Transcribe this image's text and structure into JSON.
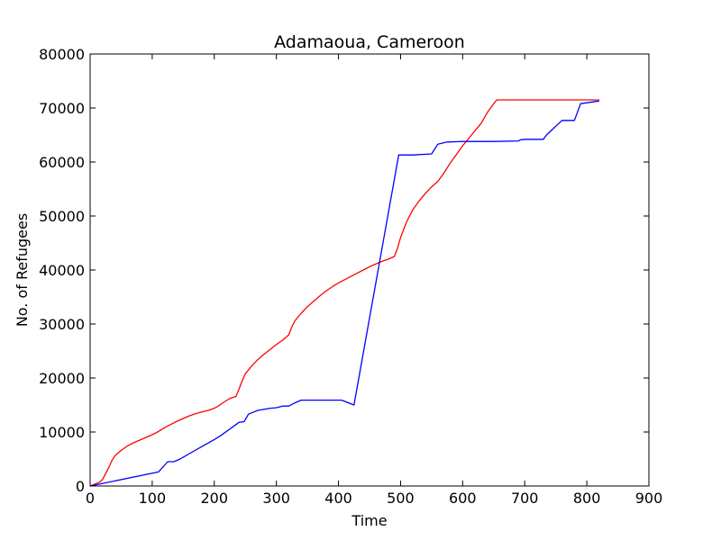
{
  "chart_data": {
    "type": "line",
    "title": "Adamaoua, Cameroon",
    "xlabel": "Time",
    "ylabel": "No. of Refugees",
    "xlim": [
      0,
      900
    ],
    "ylim": [
      0,
      80000
    ],
    "x_ticks": [
      0,
      100,
      200,
      300,
      400,
      500,
      600,
      700,
      800,
      900
    ],
    "y_ticks": [
      0,
      10000,
      20000,
      30000,
      40000,
      50000,
      60000,
      70000,
      80000
    ],
    "grid": false,
    "legend": "none",
    "series": [
      {
        "color": "#ff0000",
        "points": [
          [
            0,
            0
          ],
          [
            15,
            700
          ],
          [
            20,
            1200
          ],
          [
            25,
            2300
          ],
          [
            30,
            3400
          ],
          [
            35,
            4700
          ],
          [
            40,
            5600
          ],
          [
            50,
            6600
          ],
          [
            60,
            7400
          ],
          [
            70,
            8000
          ],
          [
            80,
            8500
          ],
          [
            90,
            9000
          ],
          [
            100,
            9500
          ],
          [
            110,
            10100
          ],
          [
            120,
            10800
          ],
          [
            130,
            11400
          ],
          [
            140,
            12000
          ],
          [
            150,
            12500
          ],
          [
            160,
            13000
          ],
          [
            170,
            13400
          ],
          [
            180,
            13700
          ],
          [
            190,
            14000
          ],
          [
            200,
            14400
          ],
          [
            205,
            14700
          ],
          [
            215,
            15500
          ],
          [
            225,
            16200
          ],
          [
            235,
            16600
          ],
          [
            240,
            18000
          ],
          [
            245,
            19500
          ],
          [
            250,
            20800
          ],
          [
            260,
            22200
          ],
          [
            270,
            23400
          ],
          [
            280,
            24400
          ],
          [
            290,
            25300
          ],
          [
            300,
            26200
          ],
          [
            310,
            27000
          ],
          [
            320,
            28000
          ],
          [
            325,
            29500
          ],
          [
            330,
            30600
          ],
          [
            340,
            32000
          ],
          [
            350,
            33200
          ],
          [
            360,
            34200
          ],
          [
            370,
            35200
          ],
          [
            380,
            36100
          ],
          [
            390,
            36900
          ],
          [
            400,
            37600
          ],
          [
            410,
            38200
          ],
          [
            420,
            38800
          ],
          [
            430,
            39400
          ],
          [
            440,
            40000
          ],
          [
            450,
            40600
          ],
          [
            460,
            41100
          ],
          [
            470,
            41600
          ],
          [
            480,
            42000
          ],
          [
            490,
            42500
          ],
          [
            495,
            44000
          ],
          [
            500,
            46000
          ],
          [
            510,
            49000
          ],
          [
            520,
            51200
          ],
          [
            530,
            52800
          ],
          [
            540,
            54200
          ],
          [
            550,
            55400
          ],
          [
            560,
            56400
          ],
          [
            570,
            58000
          ],
          [
            580,
            59800
          ],
          [
            590,
            61400
          ],
          [
            600,
            63000
          ],
          [
            610,
            64400
          ],
          [
            620,
            65800
          ],
          [
            630,
            67200
          ],
          [
            640,
            69200
          ],
          [
            650,
            70800
          ],
          [
            655,
            71500
          ],
          [
            700,
            71500
          ],
          [
            750,
            71500
          ],
          [
            800,
            71500
          ],
          [
            820,
            71500
          ]
        ]
      },
      {
        "color": "#0000ff",
        "points": [
          [
            0,
            0
          ],
          [
            110,
            2600
          ],
          [
            125,
            4500
          ],
          [
            135,
            4500
          ],
          [
            145,
            5000
          ],
          [
            160,
            6000
          ],
          [
            180,
            7300
          ],
          [
            200,
            8600
          ],
          [
            210,
            9300
          ],
          [
            240,
            11800
          ],
          [
            248,
            11900
          ],
          [
            255,
            13300
          ],
          [
            270,
            14000
          ],
          [
            290,
            14400
          ],
          [
            300,
            14500
          ],
          [
            310,
            14800
          ],
          [
            320,
            14800
          ],
          [
            330,
            15400
          ],
          [
            340,
            15900
          ],
          [
            405,
            15900
          ],
          [
            425,
            15000
          ],
          [
            497,
            61300
          ],
          [
            520,
            61300
          ],
          [
            550,
            61500
          ],
          [
            560,
            63300
          ],
          [
            575,
            63700
          ],
          [
            600,
            63800
          ],
          [
            650,
            63800
          ],
          [
            690,
            63900
          ],
          [
            693,
            64100
          ],
          [
            700,
            64200
          ],
          [
            730,
            64200
          ],
          [
            735,
            65000
          ],
          [
            760,
            67700
          ],
          [
            780,
            67700
          ],
          [
            790,
            70800
          ],
          [
            820,
            71300
          ]
        ]
      }
    ]
  }
}
